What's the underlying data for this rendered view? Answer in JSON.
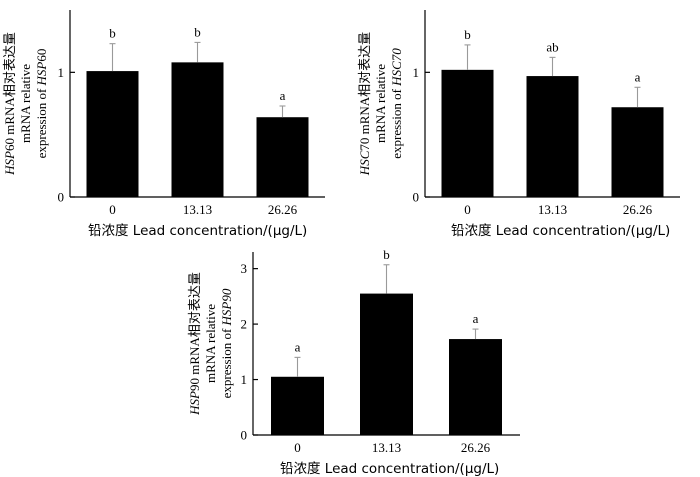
{
  "chart_data": [
    {
      "type": "bar",
      "id": "hsp60",
      "ylabel_lines": [
        [
          {
            "text": "HSP",
            "italic": true
          },
          {
            "text": "60 mRNA相对表达量",
            "italic": false
          }
        ],
        [
          {
            "text": "mRNA relative",
            "italic": false
          }
        ],
        [
          {
            "text": "expression of ",
            "italic": false
          },
          {
            "text": "HSP",
            "italic": true
          },
          {
            "text": "60",
            "italic": false
          }
        ]
      ],
      "xlabel": "铅浓度   Lead concentration/(μg/L)",
      "categories": [
        "0",
        "13.13",
        "26.26"
      ],
      "values": [
        1.01,
        1.08,
        0.64
      ],
      "errors": [
        0.22,
        0.16,
        0.09
      ],
      "significance": [
        "b",
        "b",
        "a"
      ],
      "ylim": [
        0,
        1.5
      ],
      "yticks": [
        0,
        1
      ],
      "grid": false,
      "bar_color": "#000000"
    },
    {
      "type": "bar",
      "id": "hsc70",
      "ylabel_lines": [
        [
          {
            "text": "HSC",
            "italic": true
          },
          {
            "text": "70 mRNA相对表达量",
            "italic": false
          }
        ],
        [
          {
            "text": "mRNA relative",
            "italic": false
          }
        ],
        [
          {
            "text": "expression of ",
            "italic": false
          },
          {
            "text": "HSC70",
            "italic": true
          }
        ]
      ],
      "xlabel": "铅浓度   Lead concentration/(μg/L)",
      "categories": [
        "0",
        "13.13",
        "26.26"
      ],
      "values": [
        1.02,
        0.97,
        0.72
      ],
      "errors": [
        0.2,
        0.15,
        0.16
      ],
      "significance": [
        "b",
        "ab",
        "a"
      ],
      "ylim": [
        0,
        1.5
      ],
      "yticks": [
        0,
        1
      ],
      "grid": false,
      "bar_color": "#000000"
    },
    {
      "type": "bar",
      "id": "hsp90",
      "ylabel_lines": [
        [
          {
            "text": "HSP",
            "italic": true
          },
          {
            "text": "90 mRNA相对表达量",
            "italic": false
          }
        ],
        [
          {
            "text": "mRNA relative",
            "italic": false
          }
        ],
        [
          {
            "text": "expression of ",
            "italic": false
          },
          {
            "text": "HSP90",
            "italic": true
          }
        ]
      ],
      "xlabel": "铅浓度   Lead concentration/(μg/L)",
      "categories": [
        "0",
        "13.13",
        "26.26"
      ],
      "values": [
        1.05,
        2.55,
        1.73
      ],
      "errors": [
        0.35,
        0.52,
        0.18
      ],
      "significance": [
        "a",
        "b",
        "a"
      ],
      "ylim": [
        0,
        3.3
      ],
      "yticks": [
        0,
        1,
        2,
        3
      ],
      "grid": false,
      "bar_color": "#000000"
    }
  ]
}
